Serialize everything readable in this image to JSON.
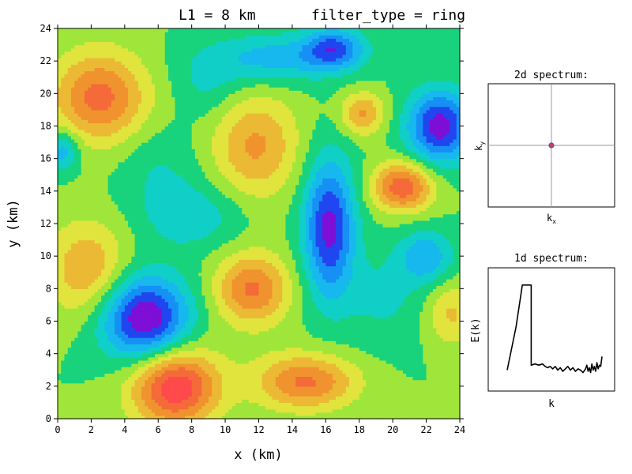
{
  "title": {
    "l1": "L1 = 8 km",
    "filter": "filter_type = ring"
  },
  "chart_data": [
    {
      "type": "heatmap",
      "name": "field",
      "xlabel": "x (km)",
      "ylabel": "y (km)",
      "xlim": [
        0,
        24
      ],
      "ylim": [
        0,
        24
      ],
      "xticks": [
        0,
        2,
        4,
        6,
        8,
        10,
        12,
        14,
        16,
        18,
        20,
        22,
        24
      ],
      "yticks": [
        0,
        2,
        4,
        6,
        8,
        10,
        12,
        14,
        16,
        18,
        20,
        22,
        24
      ],
      "levels": 12,
      "palette": [
        "#7e0fd6",
        "#2046ef",
        "#1690f5",
        "#17b8ee",
        "#10cfc6",
        "#18d37c",
        "#a0e63a",
        "#e0e43c",
        "#ecb935",
        "#f0922e",
        "#f46a38",
        "#fe4a4a"
      ],
      "features": [
        {
          "x": 2.5,
          "y": 19.8,
          "amp": 1.1,
          "rx": 2.8,
          "ry": 2.8
        },
        {
          "x": 22.8,
          "y": 18.0,
          "amp": -1.4,
          "rx": 1.9,
          "ry": 2.2
        },
        {
          "x": 20.6,
          "y": 14.3,
          "amp": 1.2,
          "rx": 1.8,
          "ry": 1.5
        },
        {
          "x": 18.2,
          "y": 18.8,
          "amp": 0.8,
          "rx": 1.3,
          "ry": 1.3
        },
        {
          "x": 16.2,
          "y": 11.8,
          "amp": -1.35,
          "rx": 1.5,
          "ry": 4.2
        },
        {
          "x": 5.2,
          "y": 6.2,
          "amp": -1.55,
          "rx": 2.6,
          "ry": 2.6
        },
        {
          "x": 7.0,
          "y": 2.0,
          "amp": 1.5,
          "rx": 2.6,
          "ry": 2.4
        },
        {
          "x": 11.6,
          "y": 8.0,
          "amp": 1.05,
          "rx": 2.2,
          "ry": 2.2
        },
        {
          "x": 11.8,
          "y": 16.8,
          "amp": 0.8,
          "rx": 2.6,
          "ry": 3.2
        },
        {
          "x": 1.8,
          "y": 9.2,
          "amp": 0.75,
          "rx": 2.4,
          "ry": 3.0
        },
        {
          "x": 14.8,
          "y": 2.3,
          "amp": 1.05,
          "rx": 3.0,
          "ry": 1.7
        },
        {
          "x": 22.0,
          "y": 10.0,
          "amp": -0.7,
          "rx": 1.6,
          "ry": 1.6
        },
        {
          "x": 13.0,
          "y": 22.2,
          "amp": -0.65,
          "rx": 4.0,
          "ry": 1.5
        },
        {
          "x": 16.5,
          "y": 22.8,
          "amp": -1.0,
          "rx": 1.7,
          "ry": 1.2
        },
        {
          "x": 8.0,
          "y": 12.5,
          "amp": -0.45,
          "rx": 3.0,
          "ry": 2.0
        },
        {
          "x": 19.5,
          "y": 7.5,
          "amp": -0.3,
          "rx": 2.5,
          "ry": 3.0
        },
        {
          "x": 23.5,
          "y": 6.5,
          "amp": 0.55,
          "rx": 1.5,
          "ry": 2.0
        },
        {
          "x": 9.0,
          "y": 20.5,
          "amp": -0.3,
          "rx": 2.0,
          "ry": 2.0
        },
        {
          "x": 6.0,
          "y": 15.5,
          "amp": -0.25,
          "rx": 2.5,
          "ry": 2.5
        },
        {
          "x": 0.3,
          "y": 16.5,
          "amp": -0.7,
          "rx": 1.0,
          "ry": 1.2
        }
      ]
    },
    {
      "type": "scatter",
      "name": "2d-spectrum",
      "title": "2d spectrum:",
      "xlabel": "k_x",
      "ylabel": "k_y",
      "xlim": [
        -1,
        1
      ],
      "ylim": [
        -1,
        1
      ],
      "center_marker": {
        "x": 0,
        "y": 0
      }
    },
    {
      "type": "line",
      "name": "1d-spectrum",
      "title": "1d spectrum:",
      "xlabel": "k",
      "ylabel": "E(k)",
      "xlim": [
        0,
        1
      ],
      "ylim": [
        0,
        1
      ],
      "x": [
        0.15,
        0.22,
        0.27,
        0.32,
        0.34,
        0.34,
        0.37,
        0.4,
        0.43,
        0.45,
        0.47,
        0.49,
        0.51,
        0.53,
        0.55,
        0.57,
        0.59,
        0.61,
        0.63,
        0.65,
        0.67,
        0.69,
        0.71,
        0.73,
        0.75,
        0.77,
        0.78,
        0.79,
        0.8,
        0.81,
        0.82,
        0.83,
        0.84,
        0.85,
        0.86,
        0.87,
        0.88,
        0.89,
        0.9
      ],
      "y": [
        0.17,
        0.52,
        0.86,
        0.86,
        0.86,
        0.21,
        0.22,
        0.21,
        0.22,
        0.2,
        0.19,
        0.2,
        0.18,
        0.2,
        0.17,
        0.19,
        0.16,
        0.18,
        0.2,
        0.17,
        0.19,
        0.16,
        0.18,
        0.17,
        0.15,
        0.18,
        0.21,
        0.16,
        0.19,
        0.15,
        0.22,
        0.17,
        0.2,
        0.16,
        0.23,
        0.18,
        0.21,
        0.2,
        0.28
      ]
    }
  ]
}
